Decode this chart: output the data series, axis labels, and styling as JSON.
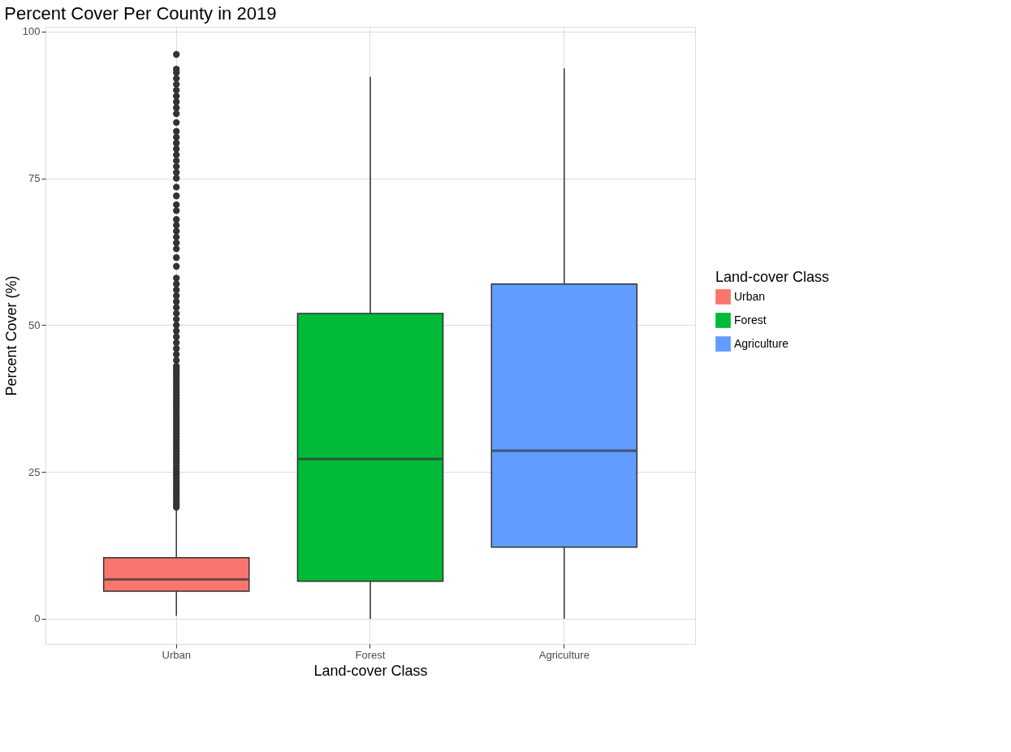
{
  "chart_data": {
    "type": "box",
    "title": "Percent Cover Per County in 2019",
    "xlabel": "Land-cover Class",
    "ylabel": "Percent Cover (%)",
    "legend_title": "Land-cover Class",
    "legend": "right",
    "grid": true,
    "categories": [
      "Urban",
      "Forest",
      "Agriculture"
    ],
    "series": [
      {
        "name": "Urban",
        "color": "#f8766d",
        "boxes": [
          {
            "low": 0.5,
            "q1": 4.7,
            "median": 6.7,
            "q3": 10.4,
            "high": 18.8,
            "outliers": [
              19,
              19.5,
              20,
              20.5,
              21,
              21.5,
              22,
              22.5,
              23,
              23.5,
              24,
              24.5,
              25,
              25.5,
              26,
              26.5,
              27,
              27.5,
              28,
              28.5,
              29,
              29.5,
              30,
              30.5,
              31,
              31.5,
              32,
              32.5,
              33,
              33.5,
              34,
              34.5,
              35,
              35.5,
              36,
              36.5,
              37,
              37.5,
              38,
              38.5,
              39,
              39.5,
              40,
              40.5,
              41,
              41.5,
              42,
              42.5,
              43,
              44,
              45,
              46,
              47,
              48,
              49,
              50,
              51,
              52,
              53,
              54,
              55,
              56,
              57,
              58,
              60,
              61.5,
              63,
              64,
              65,
              66,
              67,
              68,
              69.5,
              70.5,
              72,
              73.5,
              75,
              76,
              77,
              78,
              79,
              80,
              81,
              82,
              83,
              84.5,
              86,
              87,
              88,
              89,
              90,
              91,
              92,
              93,
              93.6,
              96.1
            ]
          },
          null,
          null
        ]
      },
      {
        "name": "Forest",
        "color": "#00ba38",
        "boxes": [
          null,
          {
            "low": 0,
            "q1": 6.4,
            "median": 27.2,
            "q3": 52.0,
            "high": 92.3
          },
          null
        ]
      },
      {
        "name": "Agriculture",
        "color": "#619cff",
        "boxes": [
          null,
          null,
          {
            "low": 0,
            "q1": 12.2,
            "median": 28.6,
            "q3": 57.0,
            "high": 93.7
          }
        ]
      }
    ],
    "ylim": [
      -4.3,
      100.8
    ],
    "yticks": [
      0,
      25,
      50,
      75,
      100
    ]
  }
}
